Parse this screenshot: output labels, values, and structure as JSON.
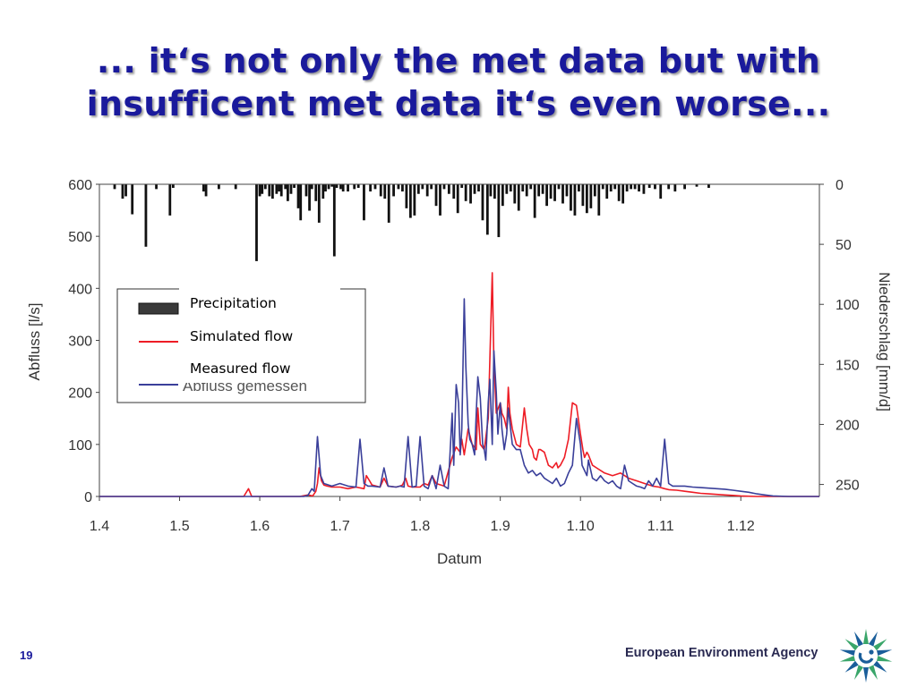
{
  "slide": {
    "title_line1": "... it‘s not only the met data but with",
    "title_line2": "insufficent met data it‘s even worse...",
    "page_number": "19",
    "agency_name": "European Environment Agency",
    "logo_icon": "eea-sun-logo-icon",
    "title_color": "#1a1a9c"
  },
  "chart_data": {
    "type": "line",
    "xlabel": "Datum",
    "ylabel_left": "Abfluss [l/s]",
    "ylabel_right": "Niederschlag [mm/d]",
    "x_tick_labels": [
      "1.4",
      "1.5",
      "1.6",
      "1.7",
      "1.8",
      "1.9",
      "1.10",
      "1.11",
      "1.12"
    ],
    "x_ticks_month_index": [
      0,
      1,
      2,
      3,
      4,
      5,
      6,
      7,
      8
    ],
    "xlim_month_index": [
      0,
      8.98
    ],
    "ylim_left": [
      0,
      600
    ],
    "yticks_left": [
      0,
      100,
      200,
      300,
      400,
      500,
      600
    ],
    "ylim_right_inverted": [
      0,
      260
    ],
    "yticks_right": [
      0,
      50,
      100,
      150,
      200,
      250
    ],
    "legend": {
      "placement": "center-left",
      "entries": [
        {
          "label": "Precipitation",
          "kind": "bar",
          "color": "#3a3a3a"
        },
        {
          "label": "Simulated flow",
          "kind": "line",
          "color": "#ee1c25"
        },
        {
          "label": "Measured flow",
          "kind": "line",
          "color": "#3a3f9a"
        }
      ],
      "covered_text": "Abfluss gemessen"
    },
    "series": [
      {
        "name": "Precipitation",
        "type": "bar",
        "axis": "right",
        "color": "#111111",
        "x": [
          0.19,
          0.29,
          0.33,
          0.41,
          0.58,
          0.71,
          0.88,
          0.92,
          1.3,
          1.33,
          1.49,
          1.7,
          1.96,
          2.0,
          2.03,
          2.07,
          2.12,
          2.16,
          2.21,
          2.24,
          2.27,
          2.32,
          2.35,
          2.39,
          2.43,
          2.48,
          2.51,
          2.58,
          2.62,
          2.65,
          2.7,
          2.74,
          2.79,
          2.82,
          2.86,
          2.9,
          2.93,
          2.96,
          3.01,
          3.04,
          3.1,
          3.18,
          3.23,
          3.3,
          3.38,
          3.44,
          3.51,
          3.56,
          3.61,
          3.67,
          3.73,
          3.78,
          3.83,
          3.88,
          3.93,
          3.98,
          4.03,
          4.09,
          4.14,
          4.2,
          4.25,
          4.3,
          4.36,
          4.42,
          4.47,
          4.52,
          4.57,
          4.63,
          4.68,
          4.73,
          4.78,
          4.84,
          4.88,
          4.93,
          4.98,
          5.03,
          5.08,
          5.13,
          5.18,
          5.23,
          5.28,
          5.33,
          5.38,
          5.43,
          5.48,
          5.53,
          5.58,
          5.63,
          5.68,
          5.73,
          5.78,
          5.83,
          5.88,
          5.93,
          5.98,
          6.03,
          6.08,
          6.13,
          6.18,
          6.23,
          6.28,
          6.33,
          6.38,
          6.43,
          6.48,
          6.53,
          6.58,
          6.63,
          6.68,
          6.73,
          6.79,
          6.86,
          6.93,
          7.0,
          7.1,
          7.18,
          7.3,
          7.45,
          7.6
        ],
        "values": [
          4,
          12,
          10,
          25,
          52,
          4,
          26,
          3,
          6,
          10,
          4,
          4,
          64,
          10,
          8,
          4,
          10,
          12,
          8,
          6,
          10,
          4,
          14,
          8,
          3,
          20,
          30,
          10,
          22,
          4,
          14,
          32,
          12,
          6,
          4,
          2,
          60,
          3,
          4,
          6,
          6,
          4,
          3,
          30,
          6,
          4,
          10,
          12,
          32,
          10,
          4,
          6,
          20,
          28,
          26,
          8,
          4,
          10,
          4,
          18,
          26,
          4,
          8,
          12,
          24,
          3,
          14,
          16,
          8,
          6,
          30,
          42,
          10,
          12,
          44,
          18,
          8,
          6,
          16,
          22,
          6,
          10,
          4,
          28,
          10,
          8,
          18,
          12,
          14,
          4,
          16,
          10,
          22,
          26,
          6,
          18,
          24,
          20,
          10,
          26,
          4,
          12,
          6,
          4,
          14,
          16,
          6,
          4,
          4,
          6,
          8,
          3,
          4,
          12,
          4,
          6,
          4,
          2,
          3
        ]
      },
      {
        "name": "Simulated flow",
        "type": "line",
        "axis": "left",
        "color": "#ee1c25",
        "x": [
          0,
          1.8,
          1.86,
          1.9,
          1.95,
          2.4,
          2.5,
          2.6,
          2.66,
          2.7,
          2.72,
          2.74,
          2.77,
          2.8,
          2.84,
          2.9,
          3.0,
          3.1,
          3.2,
          3.3,
          3.33,
          3.37,
          3.4,
          3.5,
          3.55,
          3.6,
          3.7,
          3.75,
          3.78,
          3.82,
          3.85,
          3.9,
          4.0,
          4.05,
          4.1,
          4.15,
          4.2,
          4.3,
          4.4,
          4.45,
          4.5,
          4.52,
          4.55,
          4.6,
          4.65,
          4.7,
          4.72,
          4.75,
          4.8,
          4.85,
          4.9,
          4.92,
          4.95,
          5.0,
          5.02,
          5.05,
          5.08,
          5.1,
          5.12,
          5.15,
          5.2,
          5.25,
          5.28,
          5.3,
          5.33,
          5.36,
          5.4,
          5.42,
          5.45,
          5.48,
          5.5,
          5.55,
          5.6,
          5.65,
          5.7,
          5.72,
          5.75,
          5.8,
          5.85,
          5.9,
          5.95,
          6.0,
          6.03,
          6.05,
          6.08,
          6.1,
          6.15,
          6.2,
          6.3,
          6.4,
          6.5,
          6.6,
          6.7,
          6.8,
          6.9,
          6.98,
          7.05,
          7.1,
          7.2,
          7.3,
          7.4,
          7.5,
          7.6,
          7.7,
          7.8,
          7.9,
          8.0,
          8.2,
          8.4,
          8.6,
          8.9,
          8.98
        ],
        "values": [
          0,
          0,
          15,
          0,
          0,
          0,
          0,
          3,
          1,
          10,
          25,
          55,
          30,
          22,
          20,
          18,
          18,
          15,
          18,
          15,
          40,
          30,
          22,
          18,
          35,
          20,
          18,
          20,
          22,
          35,
          20,
          18,
          18,
          25,
          22,
          40,
          25,
          20,
          75,
          95,
          85,
          110,
          80,
          130,
          100,
          90,
          170,
          100,
          90,
          150,
          430,
          260,
          160,
          180,
          160,
          150,
          130,
          210,
          160,
          130,
          100,
          95,
          140,
          170,
          130,
          100,
          90,
          75,
          70,
          90,
          90,
          85,
          60,
          55,
          65,
          55,
          60,
          75,
          110,
          180,
          175,
          120,
          90,
          75,
          85,
          80,
          60,
          55,
          45,
          40,
          45,
          35,
          30,
          25,
          20,
          18,
          15,
          13,
          12,
          10,
          8,
          6,
          5,
          4,
          3,
          2,
          1,
          0,
          0,
          0,
          0,
          0
        ]
      },
      {
        "name": "Measured flow",
        "type": "line",
        "axis": "left",
        "color": "#3a3f9a",
        "x": [
          0,
          2.5,
          2.55,
          2.6,
          2.65,
          2.68,
          2.72,
          2.76,
          2.8,
          2.9,
          3.0,
          3.1,
          3.2,
          3.25,
          3.3,
          3.35,
          3.4,
          3.5,
          3.55,
          3.6,
          3.7,
          3.75,
          3.8,
          3.85,
          3.9,
          3.95,
          4.0,
          4.05,
          4.1,
          4.15,
          4.2,
          4.25,
          4.3,
          4.35,
          4.4,
          4.42,
          4.45,
          4.48,
          4.5,
          4.52,
          4.55,
          4.57,
          4.6,
          4.62,
          4.65,
          4.68,
          4.7,
          4.72,
          4.75,
          4.78,
          4.8,
          4.82,
          4.85,
          4.87,
          4.9,
          4.92,
          4.95,
          4.97,
          5.0,
          5.02,
          5.05,
          5.08,
          5.1,
          5.15,
          5.2,
          5.25,
          5.3,
          5.35,
          5.4,
          5.45,
          5.5,
          5.55,
          5.6,
          5.65,
          5.7,
          5.75,
          5.8,
          5.85,
          5.9,
          5.95,
          6.0,
          6.02,
          6.05,
          6.08,
          6.1,
          6.15,
          6.2,
          6.25,
          6.3,
          6.35,
          6.4,
          6.45,
          6.5,
          6.55,
          6.6,
          6.65,
          6.7,
          6.75,
          6.8,
          6.85,
          6.9,
          6.95,
          7.0,
          7.05,
          7.1,
          7.15,
          7.2,
          7.3,
          7.4,
          7.5,
          7.6,
          7.7,
          7.8,
          7.9,
          8.0,
          8.1,
          8.2,
          8.3,
          8.4,
          8.6,
          8.8,
          8.98
        ],
        "values": [
          0,
          0,
          0,
          2,
          15,
          10,
          115,
          40,
          25,
          20,
          25,
          20,
          18,
          110,
          25,
          20,
          20,
          18,
          55,
          20,
          18,
          20,
          18,
          115,
          18,
          20,
          115,
          20,
          15,
          40,
          15,
          60,
          20,
          15,
          160,
          60,
          215,
          180,
          80,
          130,
          380,
          250,
          140,
          110,
          100,
          80,
          160,
          230,
          190,
          100,
          90,
          70,
          180,
          225,
          100,
          280,
          200,
          120,
          180,
          130,
          90,
          120,
          170,
          100,
          90,
          90,
          60,
          45,
          50,
          40,
          45,
          35,
          30,
          25,
          35,
          20,
          25,
          45,
          60,
          150,
          100,
          60,
          50,
          40,
          70,
          35,
          30,
          40,
          30,
          25,
          30,
          20,
          15,
          60,
          30,
          25,
          20,
          18,
          15,
          30,
          20,
          35,
          20,
          110,
          25,
          20,
          20,
          20,
          18,
          17,
          16,
          15,
          14,
          12,
          10,
          8,
          5,
          3,
          1,
          0,
          0,
          0
        ]
      }
    ]
  }
}
